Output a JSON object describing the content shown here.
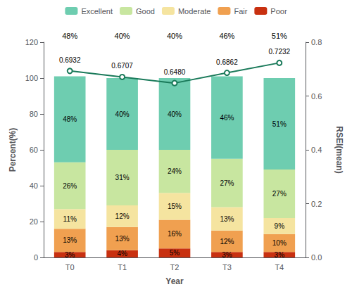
{
  "chart_data": {
    "type": "bar",
    "stacked": true,
    "data_labels": true,
    "grid": false,
    "legend": "top",
    "categories": [
      "T0",
      "T1",
      "T2",
      "T3",
      "T4"
    ],
    "xlabel": "Year",
    "ylabel": "Percent(%)",
    "y2label": "RSEI(mean)",
    "ylim": [
      0,
      120
    ],
    "yticks": [
      0,
      20,
      40,
      60,
      80,
      100,
      120
    ],
    "y2lim": [
      0,
      0.8
    ],
    "y2ticks": [
      {
        "value": 0,
        "label": "0.0"
      },
      {
        "value": 0.2,
        "label": "0.2"
      },
      {
        "value": 0.4,
        "label": "0.4"
      },
      {
        "value": 0.6,
        "label": "0.6"
      },
      {
        "value": 0.8,
        "label": "0.8"
      }
    ],
    "series": [
      {
        "name": "Poor",
        "type": "bar",
        "color": "#C83010",
        "values": [
          3,
          4,
          5,
          3,
          3
        ],
        "value_labels": [
          "3%",
          "4%",
          "5%",
          "3%",
          "3%"
        ]
      },
      {
        "name": "Fair",
        "type": "bar",
        "color": "#F0A050",
        "values": [
          13,
          13,
          16,
          12,
          10
        ],
        "value_labels": [
          "13%",
          "13%",
          "16%",
          "12%",
          "10%"
        ]
      },
      {
        "name": "Moderate",
        "type": "bar",
        "color": "#F5E4A0",
        "values": [
          11,
          12,
          15,
          13,
          9
        ],
        "value_labels": [
          "11%",
          "12%",
          "15%",
          "13%",
          "9%"
        ]
      },
      {
        "name": "Good",
        "type": "bar",
        "color": "#C8E6A0",
        "values": [
          26,
          31,
          24,
          27,
          27
        ],
        "value_labels": [
          "26%",
          "31%",
          "24%",
          "27%",
          "27%"
        ]
      },
      {
        "name": "Excellent",
        "type": "bar",
        "color": "#6ECDB0",
        "values": [
          48,
          40,
          40,
          46,
          51
        ],
        "value_labels": [
          "48%",
          "40%",
          "40%",
          "46%",
          "51%"
        ]
      },
      {
        "name": "RSEI(mean)",
        "type": "line",
        "axis": "y2",
        "color": "#1A7A5A",
        "marker": "circle",
        "values": [
          0.6932,
          0.6707,
          0.648,
          0.6862,
          0.7232
        ],
        "value_labels": [
          "0.6932",
          "0.6707",
          "0.6480",
          "0.6862",
          "0.7232"
        ]
      }
    ],
    "annotations": [
      {
        "category": "T0",
        "text": "48%"
      },
      {
        "category": "T1",
        "text": "40%"
      },
      {
        "category": "T2",
        "text": "40%"
      },
      {
        "category": "T3",
        "text": "46%"
      },
      {
        "category": "T4",
        "text": "51%"
      }
    ]
  }
}
